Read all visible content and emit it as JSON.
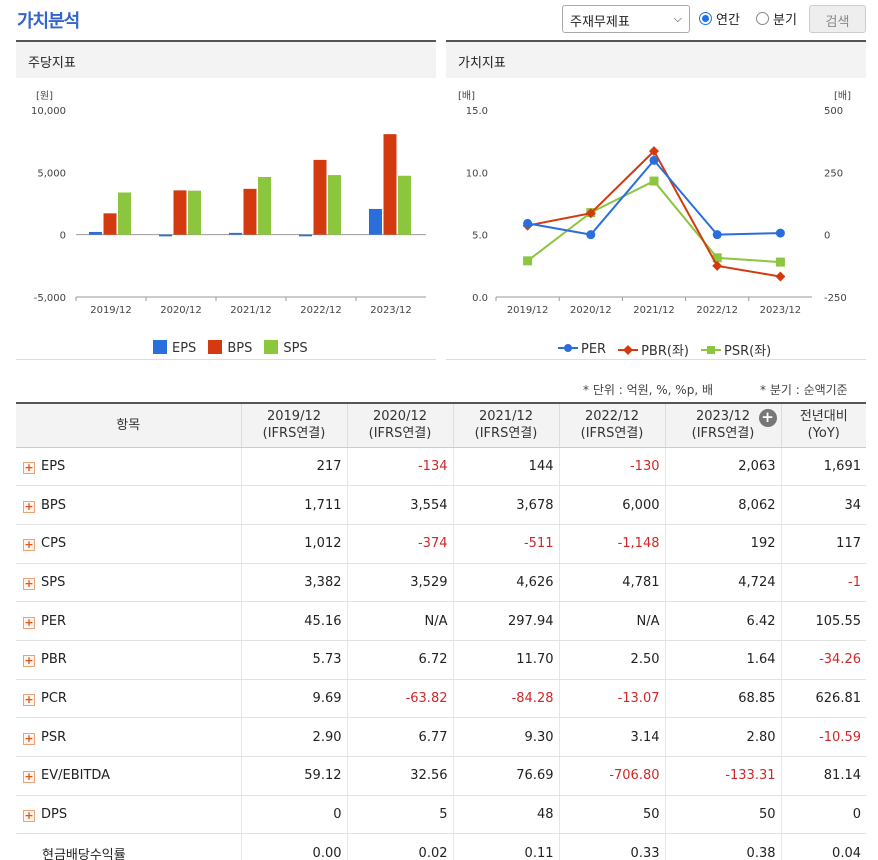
{
  "header": {
    "title": "가치분석",
    "report_select": "주재무제표",
    "radio_annual": "연간",
    "radio_quarter": "분기",
    "search_button": "검색"
  },
  "left_panel": {
    "title": "주당지표"
  },
  "right_panel": {
    "title": "가치지표"
  },
  "notes": {
    "unit": "* 단위 : 억원, %, %p, 배",
    "quarter": "* 분기 : 순액기준"
  },
  "colors": {
    "eps": "#2a6edb",
    "bps": "#d33a10",
    "sps": "#8cc63f",
    "per": "#2a6edb",
    "pbr": "#d33a10",
    "psr": "#8cc63f"
  },
  "chart_data": [
    {
      "type": "bar",
      "categories": [
        "2019/12",
        "2020/12",
        "2021/12",
        "2022/12",
        "2023/12"
      ],
      "ylabel": "[원]",
      "ylim": [
        -5000,
        10000
      ],
      "yticks": [
        "10,000",
        "5,000",
        "0",
        "-5,000"
      ],
      "grid": false,
      "legend": "bottom",
      "series": [
        {
          "name": "EPS",
          "values": [
            217,
            -134,
            144,
            -130,
            2063
          ]
        },
        {
          "name": "BPS",
          "values": [
            1711,
            3554,
            3678,
            6000,
            8062
          ]
        },
        {
          "name": "SPS",
          "values": [
            3382,
            3529,
            4626,
            4781,
            4724
          ]
        }
      ]
    },
    {
      "type": "line",
      "categories": [
        "2019/12",
        "2020/12",
        "2021/12",
        "2022/12",
        "2023/12"
      ],
      "ylabel_left": "[배]",
      "ylabel_right": "[배]",
      "ylim_left": [
        0,
        15
      ],
      "ylim_right": [
        -250,
        500
      ],
      "yticks_left": [
        "15.0",
        "10.0",
        "5.0",
        "0.0"
      ],
      "yticks_right": [
        "500",
        "250",
        "0",
        "-250"
      ],
      "legend": "bottom",
      "series": [
        {
          "name": "PER",
          "axis": "right",
          "values": [
            45.16,
            null,
            297.94,
            null,
            6.42
          ]
        },
        {
          "name": "PBR(좌)",
          "axis": "left",
          "values": [
            5.73,
            6.72,
            11.7,
            2.5,
            1.64
          ]
        },
        {
          "name": "PSR(좌)",
          "axis": "left",
          "values": [
            2.9,
            6.77,
            9.3,
            3.14,
            2.8
          ]
        }
      ]
    }
  ],
  "table": {
    "headers": [
      [
        "항목",
        ""
      ],
      [
        "2019/12",
        "(IFRS연결)"
      ],
      [
        "2020/12",
        "(IFRS연결)"
      ],
      [
        "2021/12",
        "(IFRS연결)"
      ],
      [
        "2022/12",
        "(IFRS연결)"
      ],
      [
        "2023/12",
        "(IFRS연결)"
      ],
      [
        "전년대비",
        "(YoY)"
      ]
    ],
    "rows": [
      {
        "label": "EPS",
        "expand": true,
        "values": [
          "217",
          "-134",
          "144",
          "-130",
          "2,063",
          "1,691"
        ]
      },
      {
        "label": "BPS",
        "expand": true,
        "values": [
          "1,711",
          "3,554",
          "3,678",
          "6,000",
          "8,062",
          "34"
        ]
      },
      {
        "label": "CPS",
        "expand": true,
        "values": [
          "1,012",
          "-374",
          "-511",
          "-1,148",
          "192",
          "117"
        ]
      },
      {
        "label": "SPS",
        "expand": true,
        "values": [
          "3,382",
          "3,529",
          "4,626",
          "4,781",
          "4,724",
          "-1"
        ]
      },
      {
        "label": "PER",
        "expand": true,
        "values": [
          "45.16",
          "N/A",
          "297.94",
          "N/A",
          "6.42",
          "105.55"
        ]
      },
      {
        "label": "PBR",
        "expand": true,
        "values": [
          "5.73",
          "6.72",
          "11.70",
          "2.50",
          "1.64",
          "-34.26"
        ]
      },
      {
        "label": "PCR",
        "expand": true,
        "values": [
          "9.69",
          "-63.82",
          "-84.28",
          "-13.07",
          "68.85",
          "626.81"
        ]
      },
      {
        "label": "PSR",
        "expand": true,
        "values": [
          "2.90",
          "6.77",
          "9.30",
          "3.14",
          "2.80",
          "-10.59"
        ]
      },
      {
        "label": "EV/EBITDA",
        "expand": true,
        "values": [
          "59.12",
          "32.56",
          "76.69",
          "-706.80",
          "-133.31",
          "81.14"
        ]
      },
      {
        "label": "DPS",
        "expand": true,
        "values": [
          "0",
          "5",
          "48",
          "50",
          "50",
          "0"
        ]
      },
      {
        "label": "현금배당수익률",
        "expand": false,
        "values": [
          "0.00",
          "0.02",
          "0.11",
          "0.33",
          "0.38",
          "0.04"
        ]
      }
    ]
  }
}
